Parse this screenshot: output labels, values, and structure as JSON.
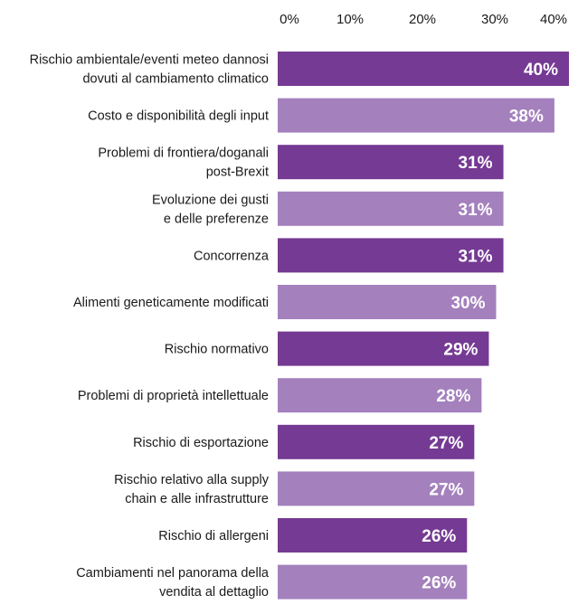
{
  "chart_data": {
    "type": "bar",
    "orientation": "horizontal",
    "title": "",
    "xlabel": "",
    "ylabel": "",
    "xlim": [
      0,
      40
    ],
    "x_ticks": [
      "0%",
      "10%",
      "20%",
      "30%",
      "40%"
    ],
    "grid": false,
    "legend": "none",
    "categories": [
      [
        "Rischio ambientale/eventi meteo dannosi",
        "dovuti al cambiamento climatico"
      ],
      [
        "Costo e disponibilità degli input"
      ],
      [
        "Problemi di frontiera/doganali",
        "post-Brexit"
      ],
      [
        "Evoluzione dei gusti",
        "e delle preferenze"
      ],
      [
        "Concorrenza"
      ],
      [
        "Alimenti geneticamente modificati"
      ],
      [
        "Rischio normativo"
      ],
      [
        "Problemi di proprietà intellettuale"
      ],
      [
        "Rischio di esportazione"
      ],
      [
        "Rischio relativo alla supply",
        "chain e alle infrastrutture"
      ],
      [
        "Rischio di allergeni"
      ],
      [
        "Cambiamenti nel panorama della",
        "vendita al dettaglio"
      ]
    ],
    "values": [
      40,
      38,
      31,
      31,
      31,
      30,
      29,
      28,
      27,
      27,
      26,
      26
    ],
    "value_labels": [
      "40%",
      "38%",
      "31%",
      "31%",
      "31%",
      "30%",
      "29%",
      "28%",
      "27%",
      "27%",
      "26%",
      "26%"
    ],
    "colors": [
      "#753a93",
      "#a480bd"
    ]
  }
}
